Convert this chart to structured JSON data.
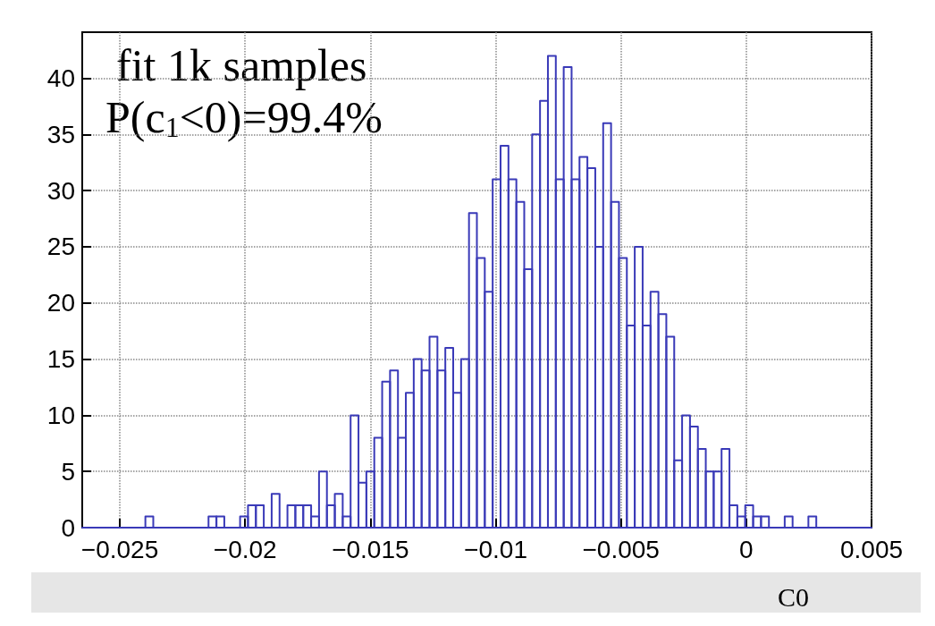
{
  "chart_data": {
    "type": "histogram",
    "xlabel": "C0",
    "bins": [
      -0.0265,
      -0.026185,
      -0.02587,
      -0.025555,
      -0.02524,
      -0.024925,
      -0.02461,
      -0.024295,
      -0.02398,
      -0.023665,
      -0.02335,
      -0.023035,
      -0.02272,
      -0.022405,
      -0.02209,
      -0.021775,
      -0.02146,
      -0.021145,
      -0.02083,
      -0.020515,
      -0.0202,
      -0.019885,
      -0.01957,
      -0.019255,
      -0.01894,
      -0.018625,
      -0.01831,
      -0.017995,
      -0.01768,
      -0.017365,
      -0.01705,
      -0.016735,
      -0.01642,
      -0.016105,
      -0.01579,
      -0.015475,
      -0.01516,
      -0.014845,
      -0.01453,
      -0.014215,
      -0.0139,
      -0.013585,
      -0.01327,
      -0.012955,
      -0.01264,
      -0.012325,
      -0.01201,
      -0.011695,
      -0.01138,
      -0.011065,
      -0.01075,
      -0.010435,
      -0.01012,
      -0.009805,
      -0.00949,
      -0.009175,
      -0.00886,
      -0.008545,
      -0.00823,
      -0.007915,
      -0.0076,
      -0.007285,
      -0.00697,
      -0.006655,
      -0.00634,
      -0.006025,
      -0.00571,
      -0.005395,
      -0.00508,
      -0.004765,
      -0.00445,
      -0.004135,
      -0.00382,
      -0.003505,
      -0.00319,
      -0.002875,
      -0.00256,
      -0.002245,
      -0.00193,
      -0.001615,
      -0.0013,
      -0.000985,
      -0.00067,
      -0.000355,
      -4e-05,
      0.000275,
      0.00059,
      0.000905,
      0.00122,
      0.001535,
      0.00185,
      0.002165,
      0.00248,
      0.002795,
      0.00311,
      0.003425,
      0.00374,
      0.004055,
      0.00437,
      0.004685,
      0.005
    ],
    "values": [
      0,
      0,
      0,
      0,
      0,
      0,
      0,
      0,
      1,
      0,
      0,
      0,
      0,
      0,
      0,
      0,
      1,
      1,
      0,
      0,
      1,
      2,
      2,
      0,
      3,
      0,
      2,
      2,
      2,
      1,
      5,
      2,
      3,
      1,
      10,
      4,
      5,
      8,
      13,
      14,
      8,
      12,
      15,
      14,
      17,
      14,
      16,
      12,
      15,
      28,
      24,
      21,
      31,
      34,
      31,
      29,
      23,
      35,
      38,
      42,
      31,
      41,
      31,
      33,
      32,
      25,
      36,
      29,
      24,
      18,
      25,
      18,
      21,
      19,
      17,
      6,
      10,
      9,
      7,
      5,
      5,
      7,
      2,
      1,
      2,
      1,
      1,
      0,
      0,
      1,
      0,
      0,
      1,
      0,
      0,
      0,
      0,
      0,
      0,
      0
    ],
    "color": "#3a3ab8",
    "xlim": [
      -0.0265,
      0.005
    ],
    "xticks": [
      {
        "value": -0.025,
        "label": "−0.025"
      },
      {
        "value": -0.02,
        "label": "−0.02"
      },
      {
        "value": -0.015,
        "label": "−0.015"
      },
      {
        "value": -0.01,
        "label": "−0.01"
      },
      {
        "value": -0.005,
        "label": "−0.005"
      },
      0,
      0.005
    ],
    "ylim": [
      0,
      44.1
    ],
    "yticks": [
      0,
      5,
      10,
      15,
      20,
      25,
      30,
      35,
      40
    ],
    "grid": true,
    "annotations": [
      "fit 1k samples",
      "P(c$_{1}$<0)=99.4%"
    ]
  }
}
